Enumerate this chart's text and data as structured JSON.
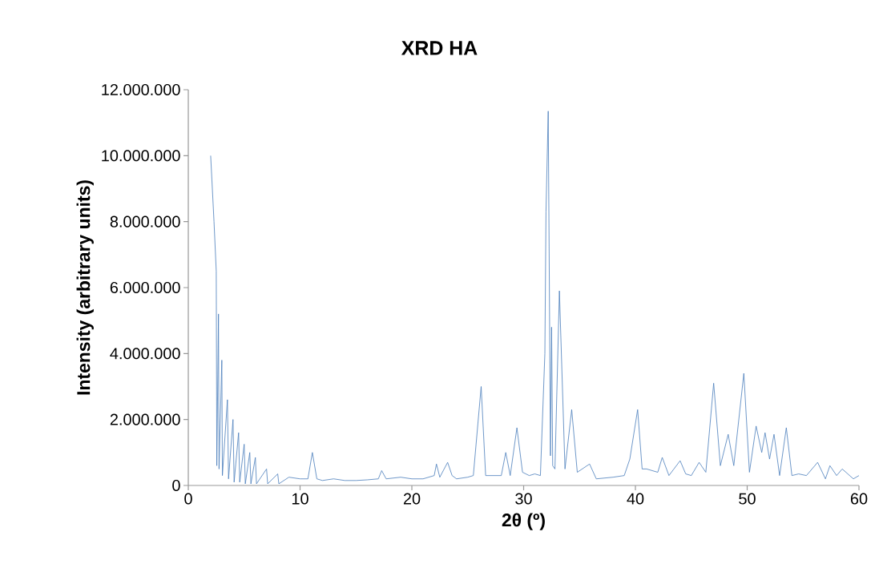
{
  "chart_data": {
    "type": "line",
    "title": "XRD HA",
    "xlabel": "2θ (º)",
    "ylabel": "Intensity (arbitrary units)",
    "x": [
      2.0,
      2.3,
      2.5,
      2.55,
      2.7,
      2.75,
      3.0,
      3.05,
      3.5,
      3.6,
      4.0,
      4.1,
      4.5,
      4.6,
      5.0,
      5.1,
      5.5,
      5.6,
      6.0,
      6.1,
      7.0,
      7.1,
      8.0,
      8.1,
      9.0,
      10.0,
      10.7,
      11.1,
      11.5,
      12.0,
      13.0,
      14.0,
      15.0,
      16.0,
      17.0,
      17.3,
      17.7,
      19.0,
      20.0,
      21.0,
      22.0,
      22.2,
      22.5,
      23.2,
      23.6,
      24.0,
      25.0,
      25.5,
      26.2,
      26.6,
      27.0,
      28.0,
      28.4,
      28.8,
      29.4,
      29.9,
      30.5,
      31.0,
      31.5,
      31.9,
      32.0,
      32.2,
      32.4,
      32.5,
      32.6,
      32.8,
      33.2,
      33.7,
      34.3,
      34.8,
      35.9,
      36.5,
      38.0,
      39.0,
      39.5,
      40.2,
      40.6,
      41.0,
      42.0,
      42.4,
      43.0,
      44.0,
      44.5,
      45.0,
      45.7,
      46.3,
      47.0,
      47.6,
      48.3,
      48.8,
      49.7,
      50.2,
      50.8,
      51.3,
      51.6,
      52.0,
      52.4,
      52.9,
      53.5,
      54.0,
      54.6,
      55.3,
      56.3,
      57.0,
      57.4,
      58.0,
      58.5,
      59.5,
      60.0
    ],
    "values": [
      10000000,
      8000000,
      6500000,
      600000,
      5200000,
      500000,
      3800000,
      300000,
      2600000,
      200000,
      2000000,
      100000,
      1600000,
      100000,
      1250000,
      50000,
      1000000,
      50000,
      850000,
      50000,
      500000,
      50000,
      350000,
      50000,
      250000,
      200000,
      200000,
      1000000,
      200000,
      150000,
      200000,
      150000,
      150000,
      170000,
      200000,
      450000,
      200000,
      250000,
      200000,
      200000,
      300000,
      650000,
      250000,
      700000,
      300000,
      200000,
      250000,
      300000,
      3000000,
      300000,
      300000,
      300000,
      1000000,
      300000,
      1750000,
      400000,
      300000,
      350000,
      300000,
      4000000,
      8300000,
      11350000,
      900000,
      4800000,
      600000,
      500000,
      5900000,
      500000,
      2300000,
      400000,
      650000,
      200000,
      250000,
      300000,
      800000,
      2300000,
      500000,
      500000,
      400000,
      850000,
      300000,
      750000,
      350000,
      300000,
      700000,
      400000,
      3100000,
      600000,
      1550000,
      600000,
      3400000,
      400000,
      1800000,
      1000000,
      1600000,
      800000,
      1550000,
      300000,
      1750000,
      300000,
      350000,
      300000,
      700000,
      200000,
      600000,
      300000,
      500000,
      200000,
      300000
    ],
    "color": "#4a7ebb",
    "xlim": [
      0,
      60
    ],
    "xticks": [
      0,
      10,
      20,
      30,
      40,
      50,
      60
    ],
    "ylim": [
      0,
      12000000
    ],
    "yticks": [
      {
        "value": 0,
        "label": "0"
      },
      {
        "value": 2000000,
        "label": "2.000.000"
      },
      {
        "value": 4000000,
        "label": "4.000.000"
      },
      {
        "value": 6000000,
        "label": "6.000.000"
      },
      {
        "value": 8000000,
        "label": "8.000.000"
      },
      {
        "value": 10000000,
        "label": "10.000.000"
      },
      {
        "value": 12000000,
        "label": "12.000.000"
      }
    ],
    "grid": false,
    "marker": "none",
    "line_style": "solid"
  }
}
